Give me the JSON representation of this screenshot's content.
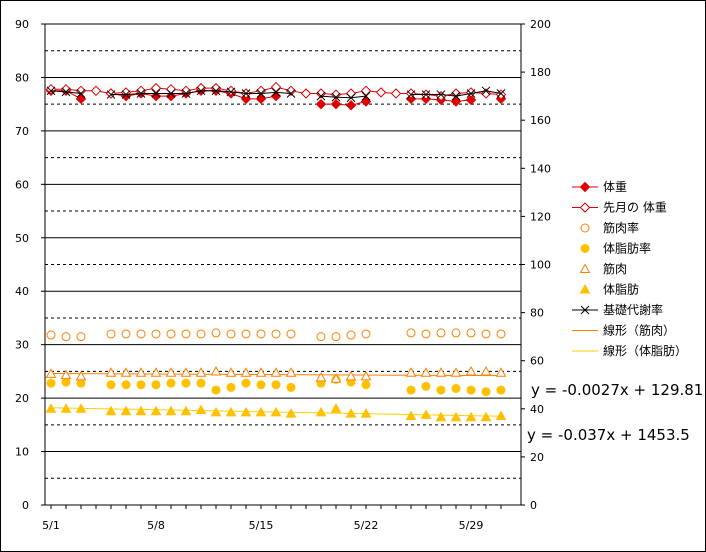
{
  "chart_data": {
    "type": "line",
    "x_tick_labels": [
      "5/1",
      "5/8",
      "5/15",
      "5/22",
      "5/29"
    ],
    "y_left": {
      "min": 0,
      "max": 90,
      "ticks": [
        0,
        10,
        20,
        30,
        40,
        50,
        60,
        70,
        80,
        90
      ]
    },
    "y_right": {
      "min": 0,
      "max": 200,
      "ticks": [
        0,
        20,
        40,
        60,
        80,
        100,
        120,
        140,
        160,
        180,
        200
      ]
    },
    "x_days": [
      1,
      2,
      3,
      4,
      5,
      6,
      7,
      8,
      9,
      10,
      11,
      12,
      13,
      14,
      15,
      16,
      17,
      18,
      19,
      20,
      21,
      22,
      23,
      24,
      25,
      26,
      27,
      28,
      29,
      30,
      31
    ],
    "series": [
      {
        "name": "体重",
        "color": "#e00000",
        "marker": "diamond-filled",
        "axis": "left",
        "values": [
          77.5,
          77.5,
          76.0,
          null,
          77.0,
          76.5,
          77.0,
          76.5,
          76.5,
          77.0,
          77.5,
          77.5,
          77.0,
          76.0,
          76.0,
          76.5,
          null,
          null,
          75.0,
          75.0,
          74.8,
          75.5,
          null,
          null,
          76.0,
          76.0,
          75.8,
          75.5,
          75.8,
          null,
          76.0
        ]
      },
      {
        "name": "先月の 体重",
        "color": "#e00000",
        "marker": "diamond-open",
        "axis": "left",
        "values": [
          77.8,
          77.8,
          77.5,
          77.5,
          77.0,
          77.2,
          77.5,
          78.0,
          77.8,
          77.5,
          78.0,
          78.0,
          77.5,
          77.0,
          77.5,
          78.2,
          77.5,
          77.0,
          77.0,
          76.8,
          77.0,
          77.5,
          77.2,
          77.0,
          77.0,
          76.8,
          76.5,
          77.0,
          77.2,
          77.0,
          76.8
        ]
      },
      {
        "name": "筋肉率",
        "color": "#ff7f00",
        "marker": "circle-open",
        "axis": "left",
        "values": [
          31.8,
          31.5,
          31.5,
          null,
          32.0,
          32.0,
          32.0,
          32.0,
          32.0,
          32.0,
          32.0,
          32.2,
          32.0,
          32.0,
          32.0,
          32.0,
          32.0,
          null,
          31.5,
          31.5,
          31.8,
          32.0,
          null,
          null,
          32.2,
          32.0,
          32.2,
          32.2,
          32.2,
          32.0,
          32.0
        ]
      },
      {
        "name": "体脂肪率",
        "color": "#ffc000",
        "marker": "circle-filled",
        "axis": "left",
        "values": [
          22.8,
          23.0,
          22.8,
          null,
          22.5,
          22.5,
          22.5,
          22.5,
          22.8,
          22.8,
          22.8,
          21.5,
          22.0,
          22.8,
          22.5,
          22.5,
          22.0,
          null,
          22.8,
          23.5,
          23.0,
          22.5,
          null,
          null,
          21.5,
          22.2,
          21.5,
          21.8,
          21.5,
          21.2,
          21.5
        ]
      },
      {
        "name": "筋肉",
        "color": "#ff7f00",
        "marker": "triangle-open",
        "axis": "right",
        "values": [
          54.5,
          54.0,
          53.5,
          null,
          55.0,
          55.0,
          55.0,
          55.0,
          55.0,
          55.0,
          55.0,
          55.5,
          55.0,
          55.0,
          55.0,
          55.0,
          55.0,
          null,
          53.0,
          52.5,
          53.5,
          53.5,
          null,
          null,
          55.0,
          55.0,
          55.0,
          55.0,
          55.5,
          55.5,
          55.0
        ]
      },
      {
        "name": "体脂肪",
        "color": "#ffc000",
        "marker": "triangle-filled",
        "axis": "right",
        "values": [
          40.0,
          40.0,
          40.0,
          null,
          39.0,
          39.0,
          39.0,
          39.0,
          39.0,
          39.0,
          39.5,
          38.5,
          38.5,
          38.5,
          38.5,
          38.5,
          38.0,
          null,
          38.5,
          40.0,
          38.0,
          38.0,
          null,
          null,
          37.0,
          37.5,
          36.5,
          36.5,
          36.5,
          36.5,
          37.0
        ]
      },
      {
        "name": "基礎代謝率",
        "color": "#000000",
        "marker": "x",
        "axis": "left",
        "values": [
          77.5,
          77.3,
          77.0,
          null,
          76.8,
          76.8,
          77.0,
          77.0,
          77.0,
          77.0,
          77.5,
          77.5,
          77.3,
          77.0,
          77.0,
          77.2,
          77.0,
          null,
          76.5,
          76.3,
          76.2,
          76.5,
          null,
          null,
          76.8,
          76.8,
          76.8,
          76.5,
          77.0,
          77.5,
          77.0
        ]
      }
    ],
    "trendlines": [
      {
        "name": "線形（筋肉）",
        "color": "#ff7f00",
        "axis": "left",
        "from": [
          1,
          24.6
        ],
        "to": [
          31,
          24.2
        ]
      },
      {
        "name": "線形（体脂肪）",
        "color": "#ffd000",
        "axis": "left",
        "from": [
          1,
          18.2
        ],
        "to": [
          31,
          16.6
        ]
      }
    ],
    "equations": [
      "y = -0.0027x + 129.81",
      "y = -0.037x + 1453.5"
    ],
    "grid": {
      "major_solid_every": 10,
      "minor_dashed_every": 5
    },
    "legend_position": "right"
  }
}
